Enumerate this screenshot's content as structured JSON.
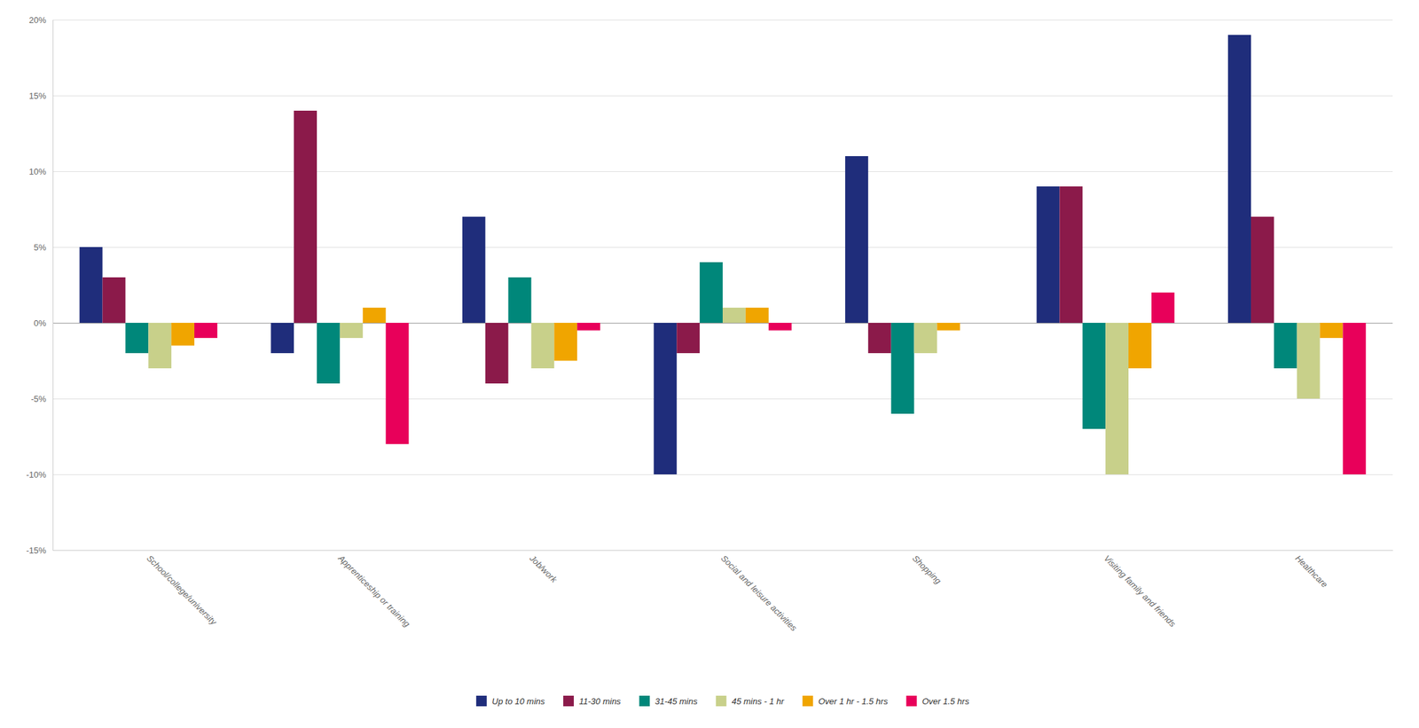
{
  "chart_data": {
    "type": "bar",
    "categories": [
      "School/college/university",
      "Apprenticeship or training",
      "Job/work",
      "Social and leisure activities",
      "Shopping",
      "Visiting family and friends",
      "Healthcare"
    ],
    "series": [
      {
        "name": "Up to 10 mins",
        "color": "#1f2d7b",
        "values": [
          5,
          -2,
          7,
          -10,
          11,
          9,
          19
        ]
      },
      {
        "name": "11-30 mins",
        "color": "#8b1a4a",
        "values": [
          3,
          14,
          -4,
          -2,
          -2,
          9,
          7
        ]
      },
      {
        "name": "31-45 mins",
        "color": "#00877a",
        "values": [
          -2,
          -4,
          3,
          4,
          -6,
          -7,
          -3
        ]
      },
      {
        "name": "45 mins - 1 hr",
        "color": "#c8d08a",
        "values": [
          -3,
          -1,
          -3,
          1,
          -2,
          -10,
          -5
        ]
      },
      {
        "name": "Over 1 hr - 1.5 hrs",
        "color": "#f0a500",
        "values": [
          -1.5,
          1,
          -2.5,
          1,
          -0.5,
          -3,
          -1
        ]
      },
      {
        "name": "Over 1.5 hrs",
        "color": "#e8005a",
        "values": [
          -1,
          -8,
          -0.5,
          -0.5,
          0,
          2,
          -10
        ]
      }
    ],
    "ylim": [
      -15,
      20
    ],
    "yticks": [
      {
        "value": -15,
        "label": "-15%"
      },
      {
        "value": -10,
        "label": "-10%"
      },
      {
        "value": -5,
        "label": "-5%"
      },
      {
        "value": 0,
        "label": "0%"
      },
      {
        "value": 5,
        "label": "5%"
      },
      {
        "value": 10,
        "label": "10%"
      },
      {
        "value": 15,
        "label": "15%"
      },
      {
        "value": 20,
        "label": "20%"
      }
    ],
    "grid": true,
    "legend": "bottom"
  }
}
